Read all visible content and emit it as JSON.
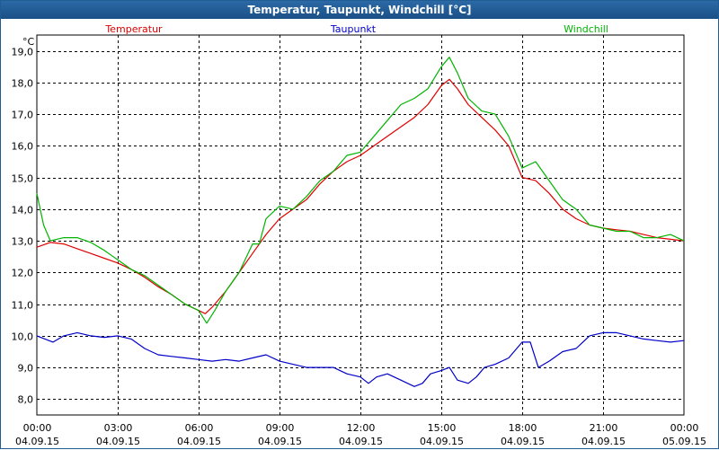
{
  "window": {
    "title": "Temperatur, Taupunkt, Windchill [°C]"
  },
  "chart_data": {
    "type": "line",
    "title": "Temperatur, Taupunkt, Windchill [°C]",
    "ylabel": "°C",
    "ylim": [
      7.5,
      19.5
    ],
    "y_ticks": [
      "19,0",
      "18,0",
      "17,0",
      "16,0",
      "15,0",
      "14,0",
      "13,0",
      "12,0",
      "11,0",
      "10,0",
      "9,0",
      "8,0"
    ],
    "xlim": [
      0,
      24
    ],
    "x_ticks": [
      {
        "time": "00:00",
        "date": "04.09.15"
      },
      {
        "time": "03:00",
        "date": "04.09.15"
      },
      {
        "time": "06:00",
        "date": "04.09.15"
      },
      {
        "time": "09:00",
        "date": "04.09.15"
      },
      {
        "time": "12:00",
        "date": "04.09.15"
      },
      {
        "time": "15:00",
        "date": "04.09.15"
      },
      {
        "time": "18:00",
        "date": "04.09.15"
      },
      {
        "time": "21:00",
        "date": "04.09.15"
      },
      {
        "time": "00:00",
        "date": "05.09.15"
      }
    ],
    "grid": true,
    "legend_position": "top",
    "series": [
      {
        "name": "Temperatur",
        "color": "#e00000",
        "x": [
          0,
          0.5,
          1,
          1.5,
          2,
          2.5,
          3,
          3.5,
          4,
          4.5,
          5,
          5.5,
          6,
          6.25,
          6.5,
          7,
          7.5,
          8,
          8.5,
          9,
          9.5,
          10,
          10.5,
          11,
          11.5,
          12,
          12.5,
          13,
          13.5,
          14,
          14.5,
          15,
          15.3,
          15.6,
          16,
          16.5,
          17,
          17.5,
          18,
          18.5,
          19,
          19.5,
          20,
          20.5,
          21,
          21.5,
          22,
          22.5,
          23,
          23.5,
          24
        ],
        "y": [
          12.8,
          12.95,
          12.9,
          12.75,
          12.6,
          12.45,
          12.3,
          12.1,
          11.85,
          11.55,
          11.3,
          11.0,
          10.8,
          10.7,
          10.9,
          11.4,
          12.0,
          12.6,
          13.2,
          13.7,
          14.0,
          14.3,
          14.8,
          15.2,
          15.5,
          15.7,
          16.0,
          16.3,
          16.6,
          16.9,
          17.3,
          17.9,
          18.1,
          17.8,
          17.3,
          16.9,
          16.5,
          16.0,
          15.0,
          14.9,
          14.5,
          14.0,
          13.7,
          13.5,
          13.4,
          13.35,
          13.3,
          13.2,
          13.1,
          13.05,
          13.0
        ]
      },
      {
        "name": "Taupunkt",
        "color": "#0000c8",
        "x": [
          0,
          0.3,
          0.6,
          1,
          1.5,
          2,
          2.5,
          3,
          3.5,
          4,
          4.5,
          5,
          5.5,
          6,
          6.5,
          7,
          7.5,
          8,
          8.5,
          9,
          9.5,
          10,
          10.5,
          11,
          11.5,
          12,
          12.3,
          12.6,
          13,
          13.5,
          14,
          14.3,
          14.6,
          15,
          15.3,
          15.6,
          16,
          16.3,
          16.6,
          17,
          17.5,
          18,
          18.3,
          18.6,
          19,
          19.5,
          20,
          20.5,
          21,
          21.5,
          22,
          22.5,
          23,
          23.5,
          24
        ],
        "y": [
          10.0,
          9.9,
          9.8,
          10.0,
          10.1,
          10.0,
          9.95,
          10.0,
          9.9,
          9.6,
          9.4,
          9.35,
          9.3,
          9.25,
          9.2,
          9.25,
          9.2,
          9.3,
          9.4,
          9.2,
          9.1,
          9.0,
          9.0,
          9.0,
          8.8,
          8.7,
          8.5,
          8.7,
          8.8,
          8.6,
          8.4,
          8.5,
          8.8,
          8.9,
          9.0,
          8.6,
          8.5,
          8.7,
          9.0,
          9.1,
          9.3,
          9.8,
          9.8,
          9.0,
          9.2,
          9.5,
          9.6,
          10.0,
          10.1,
          10.1,
          10.0,
          9.9,
          9.85,
          9.8,
          9.85
        ]
      },
      {
        "name": "Windchill",
        "color": "#00b400",
        "x": [
          0,
          0.25,
          0.5,
          1,
          1.5,
          2,
          2.5,
          3,
          3.5,
          4,
          4.5,
          5,
          5.5,
          6,
          6.3,
          6.6,
          7,
          7.5,
          8,
          8.25,
          8.5,
          9,
          9.5,
          10,
          10.5,
          11,
          11.5,
          12,
          12.5,
          13,
          13.5,
          14,
          14.5,
          15,
          15.3,
          15.6,
          16,
          16.5,
          17,
          17.5,
          18,
          18.5,
          19,
          19.5,
          20,
          20.5,
          21,
          21.5,
          22,
          22.5,
          23,
          23.5,
          24
        ],
        "y": [
          14.5,
          13.5,
          13.0,
          13.1,
          13.1,
          12.95,
          12.7,
          12.4,
          12.1,
          11.9,
          11.6,
          11.3,
          11.0,
          10.8,
          10.4,
          10.8,
          11.4,
          12.0,
          12.9,
          12.9,
          13.7,
          14.1,
          14.0,
          14.4,
          14.9,
          15.2,
          15.7,
          15.8,
          16.3,
          16.8,
          17.3,
          17.5,
          17.8,
          18.5,
          18.8,
          18.3,
          17.5,
          17.1,
          17.0,
          16.3,
          15.3,
          15.5,
          14.9,
          14.3,
          14.0,
          13.5,
          13.4,
          13.3,
          13.3,
          13.1,
          13.1,
          13.2,
          13.0
        ]
      }
    ]
  }
}
